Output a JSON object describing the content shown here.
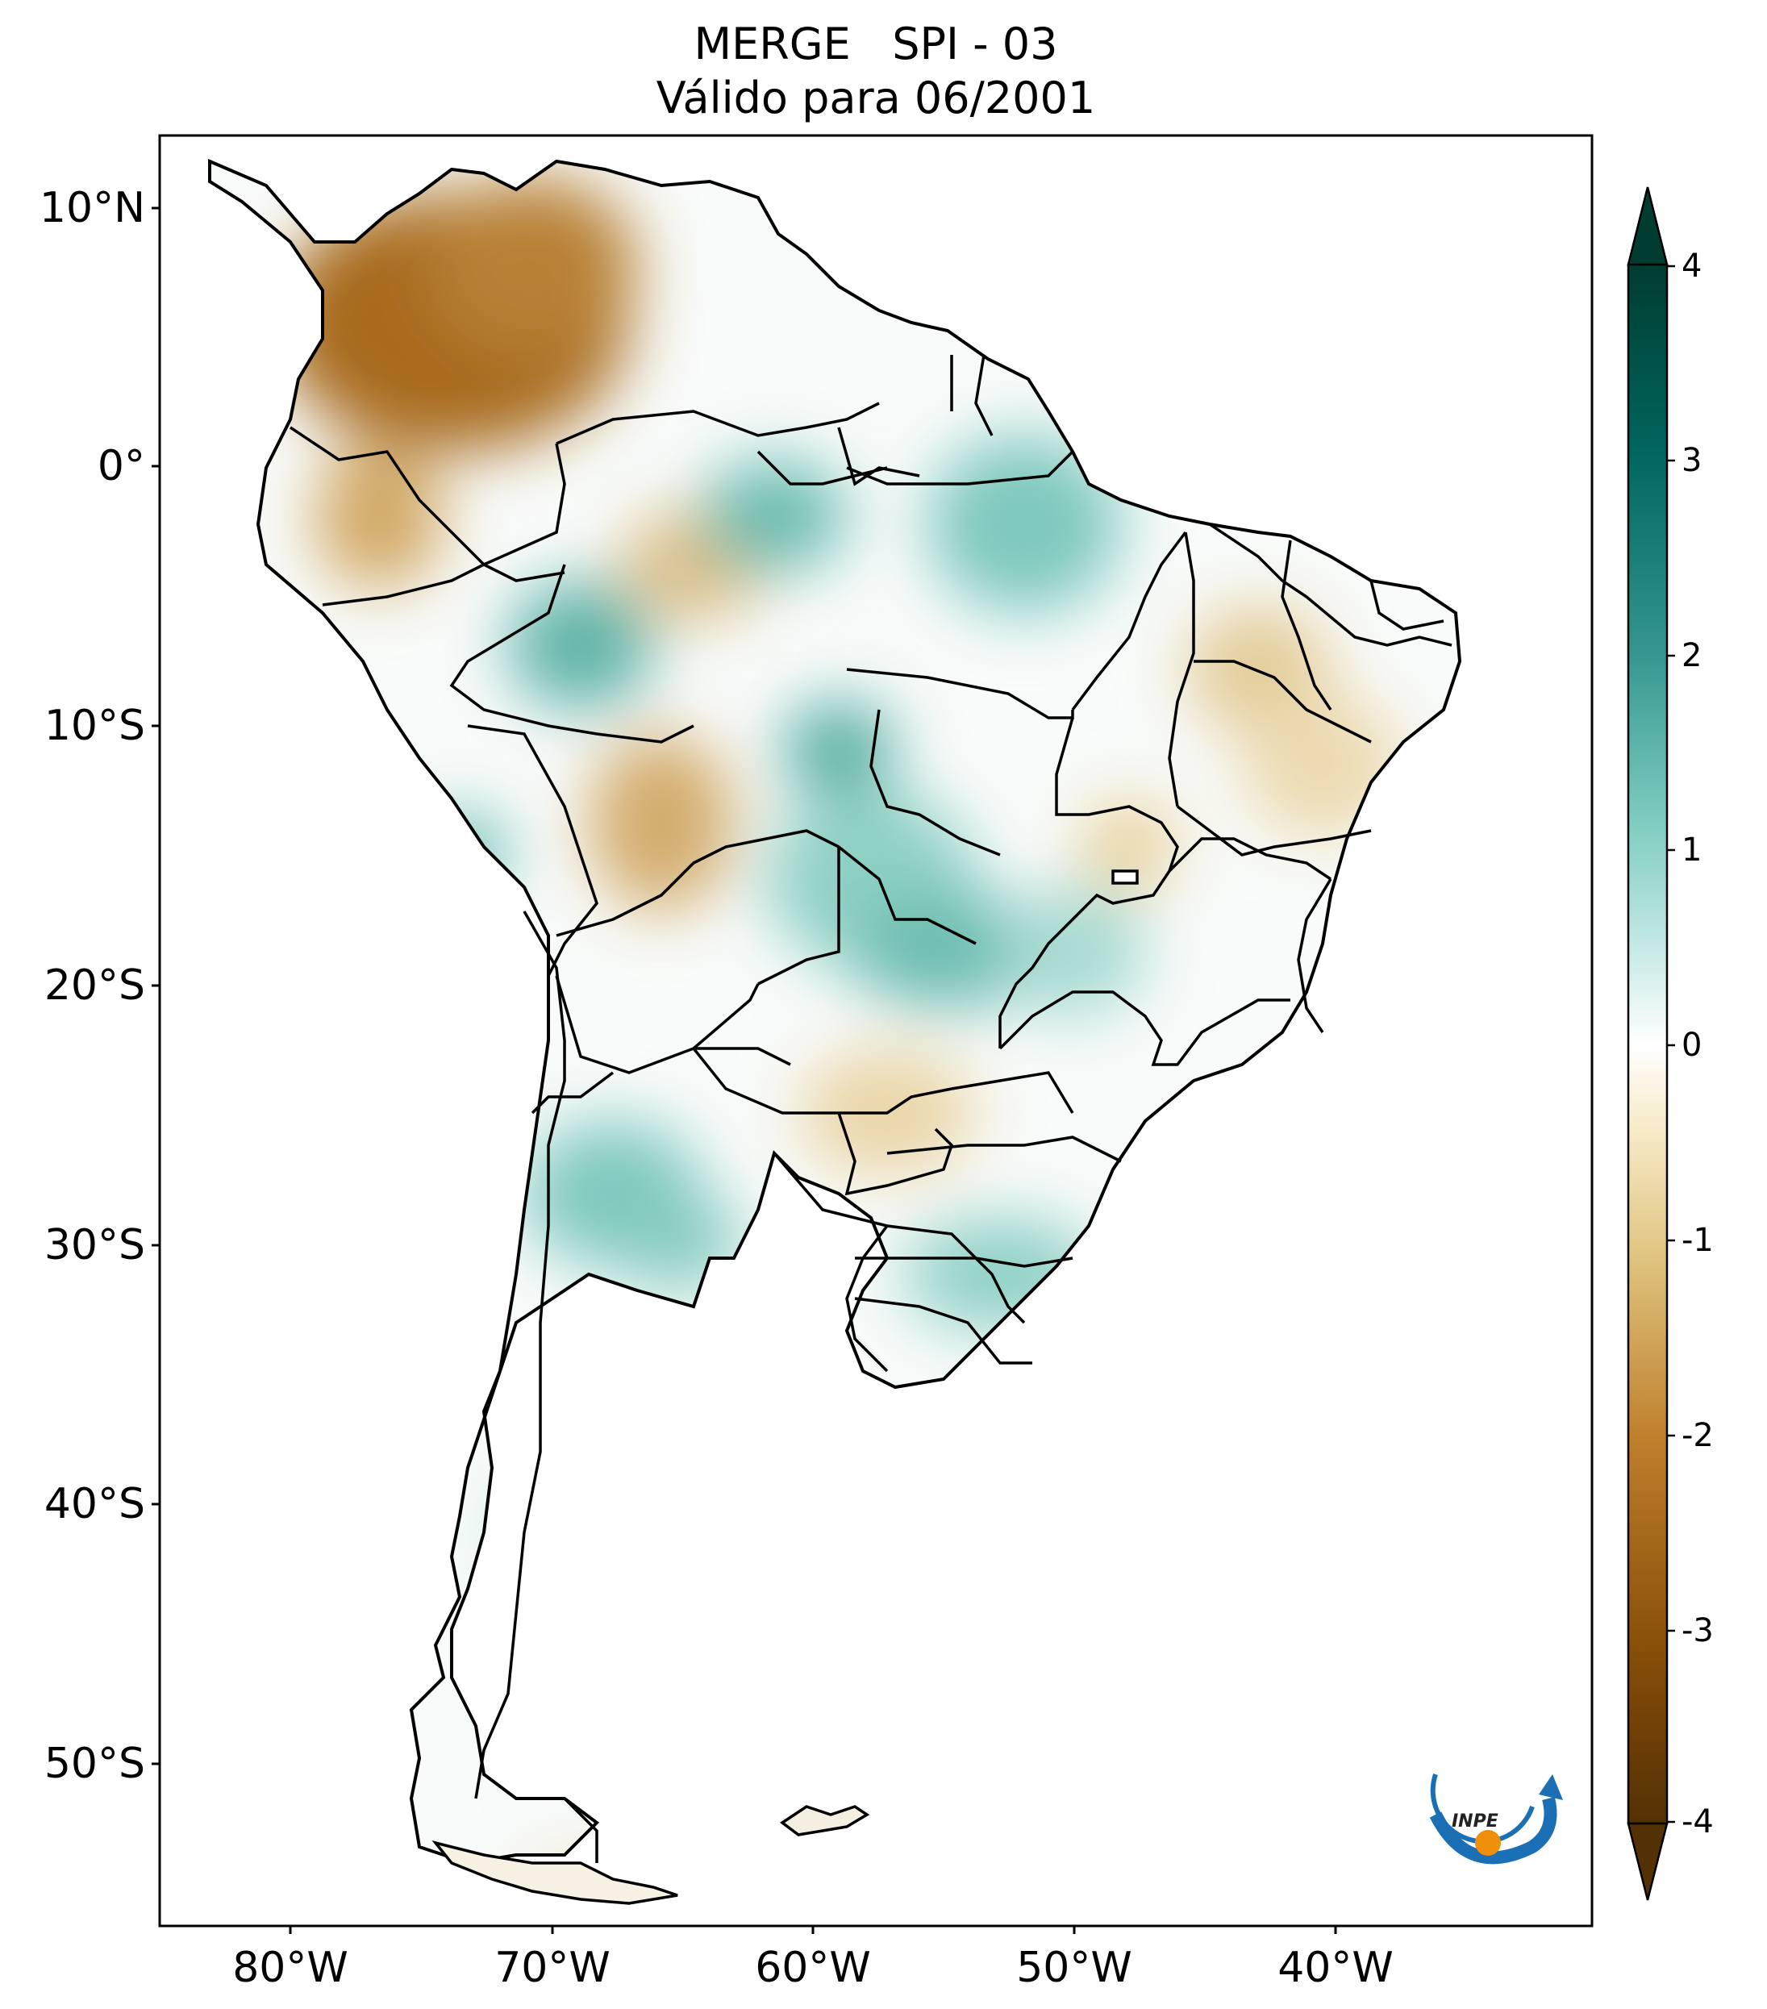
{
  "title": {
    "line1": "MERGE   SPI - 03",
    "line2": "Válido para 06/2001"
  },
  "map": {
    "region": "South America",
    "lat_labels": [
      "10°N",
      "0°",
      "10°S",
      "20°S",
      "30°S",
      "40°S",
      "50°S"
    ],
    "lon_labels": [
      "80°W",
      "70°W",
      "60°W",
      "50°W",
      "40°W"
    ]
  },
  "colorbar": {
    "ticks": [
      "4",
      "3",
      "2",
      "1",
      "0",
      "-1",
      "-2",
      "-3",
      "-4"
    ],
    "min": -4,
    "max": 4,
    "extend": "both",
    "colors": [
      "#543005",
      "#8c510a",
      "#bf812d",
      "#dfc27d",
      "#f6e8c3",
      "#ffffff",
      "#c7eae5",
      "#80cdc1",
      "#35978f",
      "#01665e",
      "#003c30"
    ]
  },
  "logo": {
    "text": "INPE"
  }
}
